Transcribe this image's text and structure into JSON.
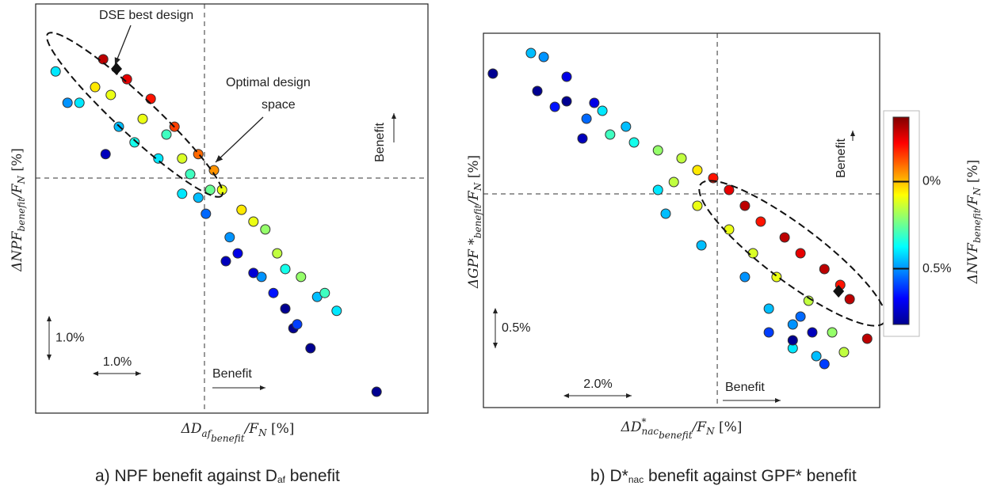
{
  "chart_data": [
    {
      "type": "scatter",
      "xlabel": [
        "ΔD",
        "af",
        "benefit",
        "/F",
        "N",
        "  [%]"
      ],
      "ylabel": [
        "ΔNPF",
        "benefit",
        "/F",
        "N",
        "  [%]"
      ],
      "caption": [
        "a)  NPF benefit against D",
        "af",
        " benefit"
      ],
      "xlim": [
        -3.55,
        4.7
      ],
      "ylim": [
        -5.4,
        4.0
      ],
      "annotations": [
        "DSE best design",
        "Optimal design",
        "space",
        "Benefit",
        "Benefit"
      ],
      "scale_bars": [
        {
          "axis": "x",
          "value": 1.0,
          "label": "1.0%"
        },
        {
          "axis": "y",
          "value": 1.0,
          "label": "1.0%"
        }
      ],
      "best": {
        "x": -1.85,
        "y": 2.51
      },
      "x": [
        -3.13,
        -2.13,
        -1.63,
        -1.13,
        -0.63,
        -0.13,
        0.2,
        -1.97,
        -1.3,
        -0.47,
        0.37,
        1.03,
        1.53,
        2.03,
        -2.63,
        -1.8,
        -0.97,
        -0.13,
        0.53,
        1.2,
        2.37,
        2.78,
        2.53,
        -2.08,
        0.45,
        0.7,
        1.03,
        1.7,
        1.87,
        2.23,
        3.62,
        1.45,
        1.95,
        -2.88,
        -2.3,
        -0.8,
        -0.3,
        0.12,
        0.78,
        1.28,
        1.7,
        0.03,
        -0.47,
        -1.47
      ],
      "y": [
        2.45,
        2.73,
        2.27,
        1.82,
        1.18,
        0.55,
        0.18,
        1.91,
        1.36,
        0.45,
        -0.27,
        -1.0,
        -1.73,
        -2.27,
        1.73,
        1.18,
        0.45,
        -0.45,
        -1.36,
        -2.27,
        -2.73,
        -3.05,
        -2.64,
        0.55,
        -1.91,
        -1.73,
        -2.18,
        -3.0,
        -3.45,
        -3.91,
        -4.91,
        -2.64,
        -3.36,
        1.73,
        2.09,
        1.0,
        0.09,
        -0.27,
        -0.73,
        -1.18,
        -2.09,
        -0.82,
        -0.36,
        0.82
      ],
      "c": [
        0.4,
        -0.3,
        -0.25,
        -0.2,
        -0.15,
        -0.1,
        -0.05,
        0.1,
        0.1,
        0.12,
        0.1,
        0.1,
        0.15,
        0.2,
        0.4,
        0.45,
        0.4,
        0.45,
        0.5,
        0.5,
        0.45,
        0.4,
        0.3,
        0.75,
        0.75,
        0.7,
        0.72,
        0.8,
        0.8,
        0.8,
        0.8,
        0.65,
        0.6,
        0.5,
        0.05,
        0.3,
        0.3,
        0.25,
        0.05,
        0.2,
        0.35,
        0.55,
        0.4,
        0.35
      ]
    },
    {
      "type": "scatter",
      "xlabel": [
        "ΔD",
        "*",
        "nac",
        "benefit",
        "/F",
        "N",
        "  [%]"
      ],
      "ylabel": [
        "ΔGPF *",
        "benefit",
        "/F",
        "N",
        "  [%]"
      ],
      "caption": [
        "b)  D*",
        "nac",
        " benefit against GPF* benefit"
      ],
      "xlim": [
        -6.94,
        4.82
      ],
      "ylim": [
        -2.7,
        2.03
      ],
      "annotations": [
        "Benefit",
        "Benefit"
      ],
      "scale_bars": [
        {
          "axis": "x",
          "value": 2.0,
          "label": "2.0%"
        },
        {
          "axis": "y",
          "value": 0.5,
          "label": "0.5%"
        }
      ],
      "best": {
        "x": 3.6,
        "y": -1.23
      },
      "x": [
        -6.66,
        -5.53,
        -5.15,
        -5.34,
        -4.47,
        -4.82,
        -3.88,
        -3.18,
        -2.47,
        -1.76,
        -1.06,
        -0.59,
        -0.12,
        0.35,
        0.82,
        1.29,
        2.0,
        2.47,
        3.18,
        3.65,
        3.93,
        -1.29,
        -0.59,
        0.35,
        1.06,
        1.76,
        2.71,
        3.41,
        3.76,
        -3.41,
        -2.71,
        -1.53,
        -1.76,
        -0.47,
        0.82,
        1.53,
        2.24,
        2.94,
        2.24,
        2.47,
        4.45,
        -4.47,
        -4.0,
        -3.65,
        2.24,
        2.82,
        3.18,
        1.53
      ],
      "y": [
        1.52,
        1.78,
        1.73,
        1.3,
        1.48,
        1.1,
        0.95,
        0.75,
        0.65,
        0.55,
        0.45,
        0.3,
        0.2,
        0.05,
        -0.15,
        -0.35,
        -0.55,
        -0.75,
        -0.95,
        -1.15,
        -1.33,
        0.15,
        -0.15,
        -0.45,
        -0.75,
        -1.05,
        -1.35,
        -1.75,
        -2.0,
        1.05,
        0.85,
        -0.25,
        0.05,
        -0.65,
        -1.05,
        -1.45,
        -1.65,
        -2.05,
        -1.95,
        -1.55,
        -1.83,
        1.17,
        0.7,
        1.15,
        -1.85,
        -1.75,
        -2.15,
        -1.75
      ],
      "c": [
        0.8,
        0.45,
        0.5,
        0.8,
        0.7,
        0.65,
        0.55,
        0.3,
        0.35,
        0.2,
        0.15,
        0.05,
        -0.2,
        -0.25,
        -0.3,
        -0.2,
        -0.3,
        -0.25,
        -0.3,
        -0.2,
        -0.3,
        0.15,
        0.1,
        0.1,
        0.12,
        0.1,
        0.15,
        0.2,
        0.15,
        0.4,
        0.45,
        0.45,
        0.4,
        0.45,
        0.5,
        0.45,
        0.5,
        0.45,
        0.4,
        0.55,
        -0.3,
        0.8,
        0.75,
        0.7,
        0.8,
        0.75,
        0.6,
        0.6
      ],
      "colorbar": {
        "label": [
          "ΔNVF",
          "benefit",
          "/F",
          "N",
          "  [%]"
        ],
        "clim": [
          -0.37,
          0.82
        ],
        "ticks": [
          {
            "value": 0,
            "label": "0%"
          },
          {
            "value": 0.5,
            "label": "0.5%"
          }
        ]
      }
    }
  ]
}
